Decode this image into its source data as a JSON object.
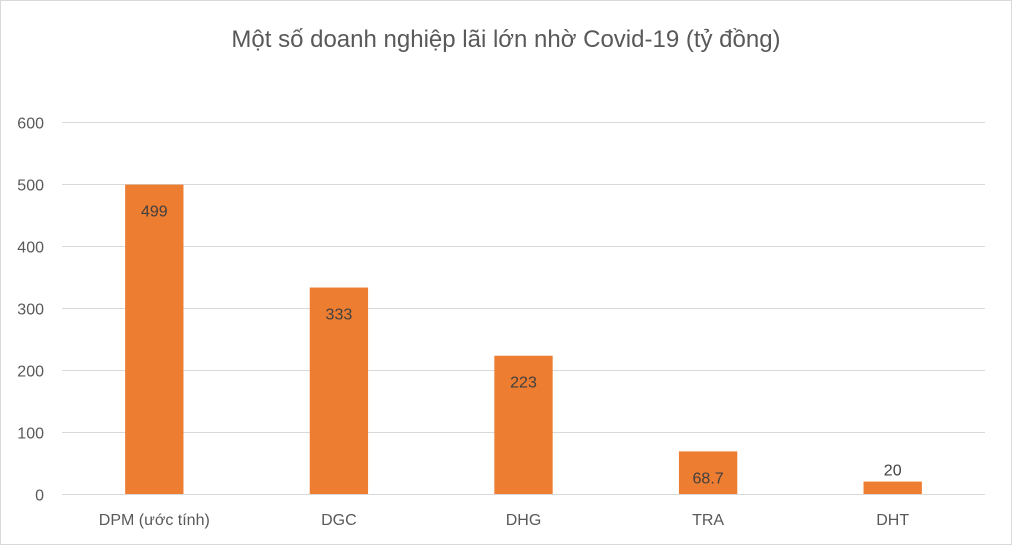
{
  "chart_data": {
    "type": "bar",
    "title": "Một số doanh nghiệp lãi lớn nhờ Covid-19 (tỷ đồng)",
    "xlabel": "",
    "ylabel": "",
    "categories": [
      "DPM (ước tính)",
      "DGC",
      "DHG",
      "TRA",
      "DHT"
    ],
    "series": [
      {
        "values": [
          499,
          333,
          223,
          68.7,
          20
        ],
        "data_labels": [
          "499",
          "333",
          "223",
          "68.7",
          "20"
        ]
      }
    ],
    "ylim": [
      0,
      600
    ],
    "yticks": [
      0,
      100,
      200,
      300,
      400,
      500,
      600
    ],
    "grid": true,
    "legend": "none",
    "colors": {
      "bar": "#ed7d31",
      "grid": "#d9d9d9",
      "text": "#595959",
      "data_label_inside": "#404040"
    }
  }
}
